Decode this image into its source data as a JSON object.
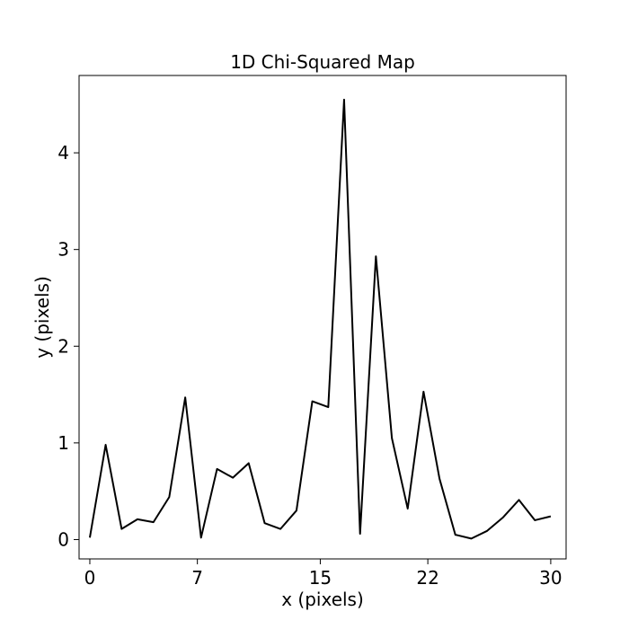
{
  "chart_data": {
    "type": "line",
    "title": "1D Chi-Squared Map",
    "xlabel": "x (pixels)",
    "ylabel": "y (pixels)",
    "xlim": [
      -0.7,
      31.0
    ],
    "ylim": [
      -0.2,
      4.8
    ],
    "xticks": [
      0,
      7,
      15,
      22,
      30
    ],
    "xtick_labels": [
      "0",
      "7",
      "15",
      "22",
      "30"
    ],
    "yticks": [
      0,
      1,
      2,
      3,
      4
    ],
    "ytick_labels": [
      "0",
      "1",
      "2",
      "3",
      "4"
    ],
    "grid": false,
    "legend": null,
    "series": [
      {
        "color": "#000000",
        "x": [
          0,
          1.03,
          2.07,
          3.1,
          4.14,
          5.17,
          6.21,
          7.24,
          8.28,
          9.31,
          10.34,
          11.38,
          12.41,
          13.45,
          14.48,
          15.52,
          16.55,
          17.59,
          18.62,
          19.66,
          20.69,
          21.72,
          22.76,
          23.79,
          24.83,
          25.86,
          26.9,
          27.93,
          28.97,
          30.0
        ],
        "y": [
          0.02,
          0.98,
          0.11,
          0.21,
          0.18,
          0.44,
          1.47,
          0.02,
          0.73,
          0.64,
          0.79,
          0.17,
          0.11,
          0.3,
          1.43,
          1.37,
          4.55,
          0.06,
          2.93,
          1.05,
          0.32,
          1.53,
          0.63,
          0.05,
          0.01,
          0.09,
          0.23,
          0.41,
          0.2,
          0.24
        ]
      }
    ]
  }
}
